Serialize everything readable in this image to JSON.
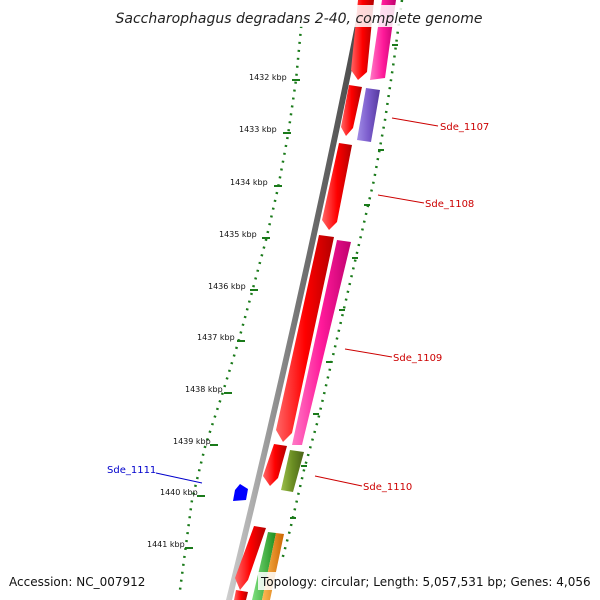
{
  "title": "Saccharophagus degradans 2-40, complete genome",
  "footer": {
    "accession": "Accession: NC_007912",
    "topology": "Topology: circular; Length: 5,057,531 bp; Genes: 4,056"
  },
  "scale": {
    "unit": "kbp",
    "ticks": [
      {
        "label": "1432 kbp"
      },
      {
        "label": "1433 kbp"
      },
      {
        "label": "1434 kbp"
      },
      {
        "label": "1435 kbp"
      },
      {
        "label": "1436 kbp"
      },
      {
        "label": "1437 kbp"
      },
      {
        "label": "1438 kbp"
      },
      {
        "label": "1439 kbp"
      },
      {
        "label": "1440 kbp"
      },
      {
        "label": "1441 kbp"
      }
    ]
  },
  "colors": {
    "backbone": "#777777",
    "cds": "#ff0000",
    "magenta": "#ff1a9a",
    "purple": "#7b5ccc",
    "olive": "#6b8e23",
    "blue": "#0000ff",
    "green": "#2eb82e",
    "light_green": "#90ee90",
    "orange": "#ff8c00",
    "tick_green": "#1a7a1a",
    "label_red": "#cc0000",
    "label_blue": "#0000cc"
  },
  "labels": [
    {
      "text": "Sde_1107",
      "color": "#cc0000"
    },
    {
      "text": "Sde_1108",
      "color": "#cc0000"
    },
    {
      "text": "Sde_1109",
      "color": "#cc0000"
    },
    {
      "text": "Sde_1110",
      "color": "#cc0000"
    },
    {
      "text": "Sde_1111",
      "color": "#0000cc"
    }
  ]
}
